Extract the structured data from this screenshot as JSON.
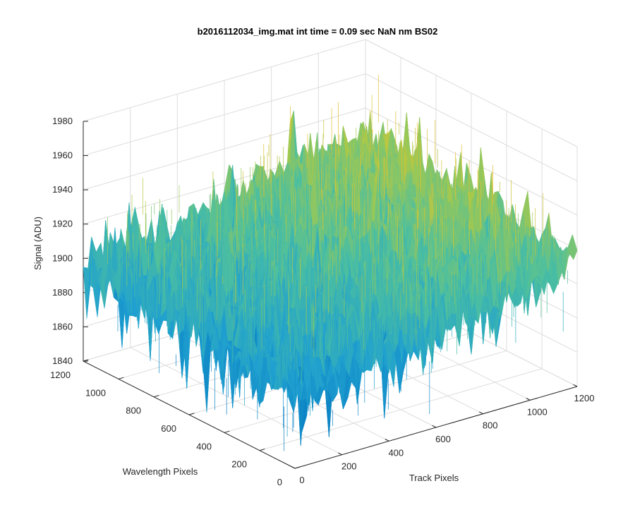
{
  "chart_data": {
    "type": "surface",
    "title": "b2016112034_img.mat int time = 0.09 sec  NaN nm BS02",
    "xlabel": "Track Pixels",
    "ylabel": "Wavelength Pixels",
    "zlabel": "Signal (ADU)",
    "xlim": [
      0,
      1200
    ],
    "ylim": [
      0,
      1200
    ],
    "zlim": [
      1840,
      1980
    ],
    "x_ticks": [
      "0",
      "200",
      "400",
      "600",
      "800",
      "1000",
      "1200"
    ],
    "y_ticks": [
      "0",
      "200",
      "400",
      "600",
      "800",
      "1000",
      "1200"
    ],
    "z_ticks": [
      "1840",
      "1860",
      "1880",
      "1900",
      "1920",
      "1940",
      "1960",
      "1980"
    ],
    "grid": true,
    "colormap": "parula",
    "colors": {
      "low": "#0072bd",
      "mid_low": "#1fa0d0",
      "mid": "#4cbfa0",
      "mid_high": "#a6c94a",
      "high": "#e8c030",
      "axis": "#262626",
      "grid": "#dcdcdc"
    },
    "surface_trends": {
      "x_samples": [
        0,
        200,
        400,
        600,
        800,
        1000,
        1200
      ],
      "y_samples": [
        0,
        200,
        400,
        600,
        800,
        1000,
        1200
      ],
      "mean_signal_grid": [
        [
          1880,
          1885,
          1890,
          1896,
          1902,
          1908,
          1912
        ],
        [
          1884,
          1889,
          1894,
          1900,
          1906,
          1912,
          1916
        ],
        [
          1887,
          1892,
          1898,
          1904,
          1910,
          1916,
          1919
        ],
        [
          1890,
          1895,
          1901,
          1907,
          1913,
          1919,
          1921
        ],
        [
          1892,
          1897,
          1903,
          1909,
          1915,
          1920,
          1922
        ],
        [
          1893,
          1898,
          1904,
          1910,
          1916,
          1920,
          1921
        ],
        [
          1893,
          1898,
          1903,
          1909,
          1914,
          1918,
          1919
        ]
      ],
      "noise_amplitude": 28
    }
  }
}
